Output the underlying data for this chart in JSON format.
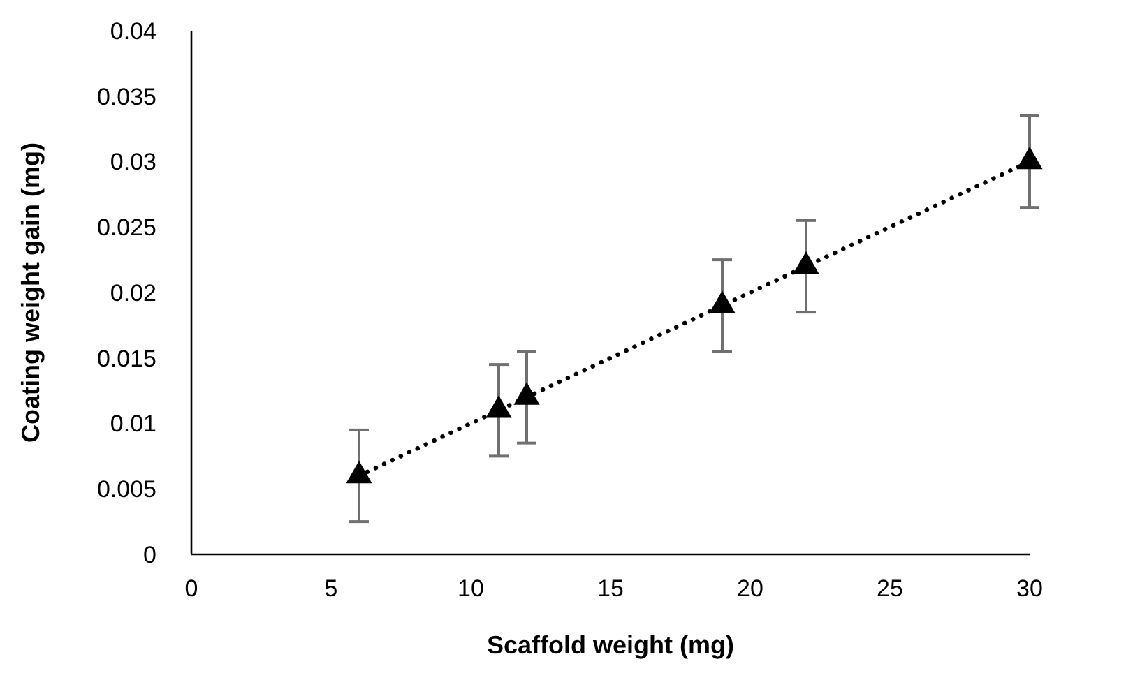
{
  "chart_data": {
    "type": "line",
    "xlabel": "Scaffold weight (mg)",
    "ylabel": "Coating weight gain (mg)",
    "x": [
      6,
      11,
      12,
      19,
      22,
      30
    ],
    "series": [
      {
        "color": "#000000",
        "values": [
          0.006,
          0.011,
          0.012,
          0.019,
          0.022,
          0.03
        ],
        "errors": [
          0.0035,
          0.0035,
          0.0035,
          0.0035,
          0.0035,
          0.0035
        ]
      }
    ],
    "xlim": [
      0,
      30
    ],
    "xticks": [
      0,
      5,
      10,
      15,
      20,
      25,
      30
    ],
    "ylim": [
      0,
      0.04
    ],
    "yticks": [
      0,
      0.005,
      0.01,
      0.015,
      0.02,
      0.025,
      0.03,
      0.035,
      0.04
    ],
    "grid": false,
    "marker": "triangle",
    "line_style": "dotted"
  }
}
